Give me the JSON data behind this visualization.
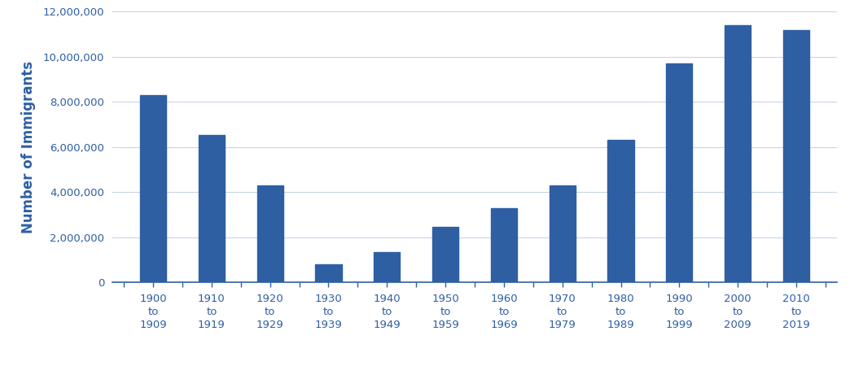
{
  "categories": [
    "1900\nto\n1909",
    "1910\nto\n1919",
    "1920\nto\n1929",
    "1930\nto\n1939",
    "1940\nto\n1949",
    "1950\nto\n1959",
    "1960\nto\n1969",
    "1970\nto\n1979",
    "1980\nto\n1989",
    "1990\nto\n1999",
    "2000\nto\n2009",
    "2010\nto\n2019"
  ],
  "values": [
    8300000,
    6550000,
    4300000,
    800000,
    1350000,
    2450000,
    3300000,
    4300000,
    6300000,
    9700000,
    11400000,
    11200000
  ],
  "bar_color": "#2E5FA3",
  "ylabel": "Number of Immigrants",
  "ylim": [
    0,
    12000000
  ],
  "ytick_step": 2000000,
  "background_color": "#ffffff",
  "grid_color": "#c8d4e8",
  "bar_width": 0.45,
  "ylabel_fontsize": 12,
  "tick_label_fontsize": 9.5,
  "ylabel_color": "#2E5FA3",
  "tick_label_color": "#2E5FA3",
  "ytick_label_color": "#2E5FA3",
  "axis_color": "#2E5FA3"
}
